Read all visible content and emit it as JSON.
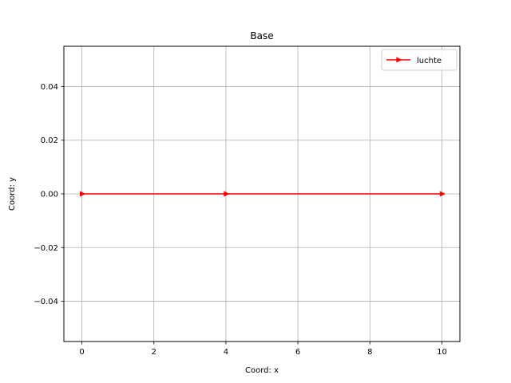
{
  "chart_data": {
    "type": "line",
    "title": "Base",
    "xlabel": "Coord: x",
    "ylabel": "Coord: y",
    "xlim": [
      -0.5,
      10.5
    ],
    "ylim": [
      -0.055,
      0.055
    ],
    "xticks": [
      0,
      2,
      4,
      6,
      8,
      10
    ],
    "xtick_labels": [
      "0",
      "2",
      "4",
      "6",
      "8",
      "10"
    ],
    "yticks": [
      -0.04,
      -0.02,
      0.0,
      0.02,
      0.04
    ],
    "ytick_labels": [
      "−0.04",
      "−0.02",
      "0.00",
      "0.02",
      "0.04"
    ],
    "grid": true,
    "legend_position": "top-right",
    "series": [
      {
        "name": "luchte",
        "color": "#ff0000",
        "marker": "triangle-right",
        "x": [
          0,
          4,
          10
        ],
        "y": [
          0,
          0,
          0
        ]
      }
    ]
  }
}
